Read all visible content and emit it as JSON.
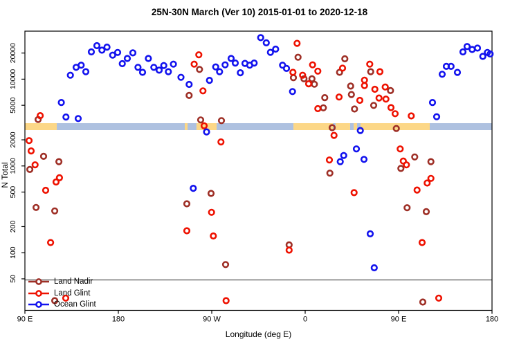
{
  "title": "25N-30N March (Ver 10)   2015-01-01 to 2020-12-18",
  "x_axis": {
    "label": "Longitude (deg E)",
    "tick_lons": [
      90,
      180,
      270,
      360,
      450,
      540
    ],
    "tick_labels": [
      "90 E",
      "180",
      "90 W",
      "0",
      "90 E",
      "180"
    ]
  },
  "y_axis": {
    "label": "N Total",
    "scale": "log",
    "tick_values": [
      20000,
      10000,
      5000,
      2000,
      1000,
      500,
      200,
      100,
      50
    ],
    "tick_labels": [
      "20000",
      "10000",
      "5000",
      "2000",
      "1000",
      "500",
      "200",
      "100",
      "50"
    ]
  },
  "reference_line": {
    "y_value": 50,
    "color": "#7f7f7f"
  },
  "land_ocean_band": {
    "land_color": "#FCD787",
    "ocean_color": "#AEC1E0",
    "value_range": [
      2600,
      3100
    ],
    "segments": [
      {
        "type": "land",
        "from_lon": 90.0,
        "to_lon": 120.7
      },
      {
        "type": "ocean",
        "from_lon": 120.7,
        "to_lon": 244.0
      },
      {
        "type": "land",
        "from_lon": 244.0,
        "to_lon": 246.7
      },
      {
        "type": "ocean",
        "from_lon": 246.7,
        "to_lon": 255.3
      },
      {
        "type": "land",
        "from_lon": 255.3,
        "to_lon": 274.7
      },
      {
        "type": "ocean",
        "from_lon": 274.7,
        "to_lon": 348.7
      },
      {
        "type": "land",
        "from_lon": 348.7,
        "to_lon": 386.7
      },
      {
        "type": "ocean",
        "from_lon": 386.7,
        "to_lon": 389.3
      },
      {
        "type": "land",
        "from_lon": 389.3,
        "to_lon": 403.3
      },
      {
        "type": "ocean",
        "from_lon": 403.3,
        "to_lon": 406.7
      },
      {
        "type": "land",
        "from_lon": 406.7,
        "to_lon": 410.0
      },
      {
        "type": "ocean",
        "from_lon": 410.0,
        "to_lon": 413.3
      },
      {
        "type": "land",
        "from_lon": 413.3,
        "to_lon": 480.0
      },
      {
        "type": "ocean",
        "from_lon": 480.0,
        "to_lon": 540.0
      }
    ]
  },
  "legend": {
    "items": [
      {
        "label": "Land Nadir",
        "color": "#9E2F26"
      },
      {
        "label": "Land Glint",
        "color": "#EE1100"
      },
      {
        "label": "Ocean Glint",
        "color": "#1212EE"
      }
    ]
  },
  "chart_data": {
    "type": "scatter",
    "title": "25N-30N March (Ver 10)   2015-01-01 to 2020-12-18",
    "xlabel": "Longitude (deg E)",
    "ylabel": "N Total",
    "x_range": [
      90,
      540
    ],
    "y_range": [
      20,
      35000
    ],
    "y_scale": "log",
    "legend_position": "bottom-left",
    "series": [
      {
        "name": "Land Nadir",
        "color": "#9E2F26",
        "points": [
          [
            102.7,
            3430
          ],
          [
            108,
            1290
          ],
          [
            122.7,
            1120
          ],
          [
            94.7,
            910
          ],
          [
            100.7,
            332
          ],
          [
            118.7,
            303
          ],
          [
            118.7,
            28
          ],
          [
            258.2,
            12950
          ],
          [
            248.2,
            6500
          ],
          [
            259.3,
            3390
          ],
          [
            279.3,
            3330
          ],
          [
            246,
            366
          ],
          [
            269.3,
            482
          ],
          [
            283.3,
            73
          ],
          [
            344.5,
            123
          ],
          [
            353.1,
            17900
          ],
          [
            348.7,
            10400
          ],
          [
            358.9,
            10100
          ],
          [
            366.5,
            10100
          ],
          [
            368.9,
            8750
          ],
          [
            377.5,
            4680
          ],
          [
            378.9,
            6130
          ],
          [
            386,
            2760
          ],
          [
            383.8,
            826
          ],
          [
            393.1,
            12000
          ],
          [
            398.2,
            17150
          ],
          [
            403.8,
            8330
          ],
          [
            404.5,
            6650
          ],
          [
            407.5,
            4530
          ],
          [
            423.1,
            12200
          ],
          [
            426,
            4990
          ],
          [
            442.2,
            7380
          ],
          [
            447.8,
            2700
          ],
          [
            452.2,
            936
          ],
          [
            465.5,
            1270
          ],
          [
            481.1,
            1120
          ],
          [
            458.2,
            330
          ],
          [
            476.7,
            297
          ],
          [
            473.3,
            27
          ]
        ]
      },
      {
        "name": "Land Glint",
        "color": "#EE1100",
        "points": [
          [
            104.7,
            3800
          ],
          [
            94,
            1960
          ],
          [
            96,
            1490
          ],
          [
            99.8,
            1030
          ],
          [
            123.3,
            730
          ],
          [
            120,
            653
          ],
          [
            110,
            524
          ],
          [
            114.7,
            131
          ],
          [
            129.3,
            30
          ],
          [
            257.5,
            19100
          ],
          [
            253.1,
            14900
          ],
          [
            261.5,
            7330
          ],
          [
            262.7,
            2900
          ],
          [
            278.9,
            1890
          ],
          [
            269.8,
            292
          ],
          [
            246,
            179
          ],
          [
            271.5,
            156
          ],
          [
            283.8,
            28
          ],
          [
            344.5,
            107
          ],
          [
            352.2,
            25900
          ],
          [
            348.2,
            12000
          ],
          [
            357.5,
            11100
          ],
          [
            363.3,
            8850
          ],
          [
            367.1,
            14630
          ],
          [
            372.2,
            12380
          ],
          [
            372.2,
            4570
          ],
          [
            387.8,
            2250
          ],
          [
            383.3,
            1170
          ],
          [
            392.7,
            6230
          ],
          [
            396,
            13400
          ],
          [
            422.2,
            14900
          ],
          [
            432,
            12200
          ],
          [
            417.1,
            9740
          ],
          [
            417.1,
            8430
          ],
          [
            412.7,
            5700
          ],
          [
            427.1,
            7650
          ],
          [
            431.1,
            6070
          ],
          [
            437.1,
            8130
          ],
          [
            437.8,
            5890
          ],
          [
            442.7,
            4700
          ],
          [
            446.7,
            4000
          ],
          [
            462.2,
            3770
          ],
          [
            451.5,
            1570
          ],
          [
            454.5,
            1140
          ],
          [
            457.5,
            1030
          ],
          [
            481.1,
            718
          ],
          [
            477.5,
            635
          ],
          [
            467.8,
            528
          ],
          [
            407.1,
            492
          ],
          [
            472.7,
            131
          ],
          [
            488.7,
            30
          ]
        ]
      },
      {
        "name": "Ocean Glint",
        "color": "#1212EE",
        "points": [
          [
            125.1,
            5390
          ],
          [
            129.5,
            3660
          ],
          [
            141.3,
            3520
          ],
          [
            133.8,
            11100
          ],
          [
            139.3,
            13700
          ],
          [
            144.2,
            14500
          ],
          [
            148.7,
            12200
          ],
          [
            154,
            20600
          ],
          [
            159.3,
            24300
          ],
          [
            164.2,
            21600
          ],
          [
            169.1,
            23400
          ],
          [
            174.5,
            18900
          ],
          [
            179.3,
            20300
          ],
          [
            183.8,
            15100
          ],
          [
            188.7,
            17300
          ],
          [
            194,
            20100
          ],
          [
            198.9,
            13700
          ],
          [
            203.3,
            12000
          ],
          [
            208.9,
            17300
          ],
          [
            214.2,
            13700
          ],
          [
            219.3,
            12700
          ],
          [
            223.8,
            14350
          ],
          [
            228.2,
            12200
          ],
          [
            233.1,
            14900
          ],
          [
            240.3,
            10500
          ],
          [
            248.2,
            8700
          ],
          [
            267.8,
            9700
          ],
          [
            273.8,
            13850
          ],
          [
            277.5,
            12200
          ],
          [
            282.9,
            14630
          ],
          [
            288.7,
            17300
          ],
          [
            292.7,
            15350
          ],
          [
            297.5,
            11870
          ],
          [
            302,
            15200
          ],
          [
            306.5,
            14500
          ],
          [
            310.9,
            15350
          ],
          [
            317.1,
            30100
          ],
          [
            322.5,
            26200
          ],
          [
            326.5,
            20400
          ],
          [
            331.5,
            22200
          ],
          [
            338.2,
            14500
          ],
          [
            342,
            13300
          ],
          [
            347.8,
            7200
          ],
          [
            265,
            2470
          ],
          [
            252.2,
            553
          ],
          [
            397.1,
            1320
          ],
          [
            393.8,
            1120
          ],
          [
            409.3,
            1570
          ],
          [
            416.7,
            1190
          ],
          [
            413.1,
            2560
          ],
          [
            422.7,
            165
          ],
          [
            426.5,
            67
          ],
          [
            482.7,
            5390
          ],
          [
            486.7,
            3690
          ],
          [
            492,
            11400
          ],
          [
            496,
            14050
          ],
          [
            500.5,
            14050
          ],
          [
            506.7,
            11970
          ],
          [
            512,
            20600
          ],
          [
            516,
            23800
          ],
          [
            520.9,
            22000
          ],
          [
            526,
            22800
          ],
          [
            531.1,
            18300
          ],
          [
            535.5,
            20300
          ],
          [
            538.2,
            19500
          ]
        ]
      }
    ]
  }
}
